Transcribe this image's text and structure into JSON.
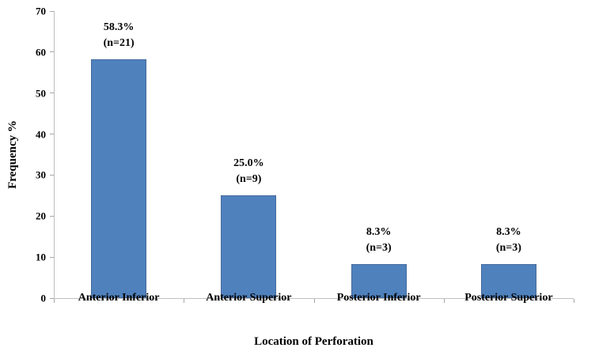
{
  "chart_data": {
    "type": "bar",
    "categories": [
      "Anterior Inferior",
      "Anterior Superior",
      "Posterior Inferior",
      "Posterior Superior"
    ],
    "values": [
      58.3,
      25.0,
      8.3,
      8.3
    ],
    "counts": [
      21,
      9,
      3,
      3
    ],
    "bar_labels": [
      [
        "58.3%",
        "(n=21)"
      ],
      [
        "25.0%",
        "(n=9)"
      ],
      [
        "8.3%",
        "(n=3)"
      ],
      [
        "8.3%",
        "(n=3)"
      ]
    ],
    "xlabel": "Location of Perforation",
    "ylabel": "Frequency %",
    "ylim": [
      0,
      70
    ],
    "yticks": [
      0,
      10,
      20,
      30,
      40,
      50,
      60,
      70
    ],
    "grid": false,
    "legend": "none",
    "bar_color": "#4F81BD",
    "bar_border_color": "#44699D",
    "axis_color": "#BFBFBF",
    "tick_color": "#A6A6A6",
    "text_color": "#000000"
  }
}
